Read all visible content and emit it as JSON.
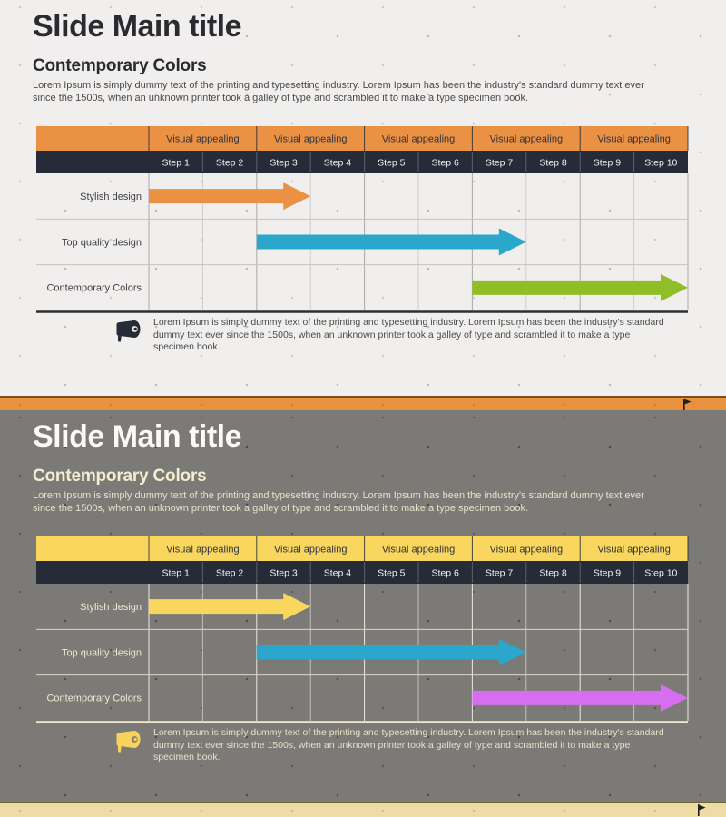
{
  "slides": [
    {
      "name": "light-theme-slide",
      "title": "Slide Main title",
      "subtitle": "Contemporary Colors",
      "intro": "Lorem Ipsum is simply dummy text of the printing and typesetting industry. Lorem Ipsum has been the industry's standard dummy text ever since the 1500s, when an unknown printer took a galley of type and scrambled it to make a type specimen book.",
      "footnote": "Lorem Ipsum is simply dummy text of the printing and typesetting industry. Lorem Ipsum has been the industry's standard dummy text ever since the 1500s, when an unknown printer took a galley of type and scrambled it to make a type specimen book.",
      "theme": {
        "bg": "#F0EFED",
        "title": "#2A2A30",
        "subtitle": "#2A2A30",
        "body": "#4B4B4D",
        "band": "#EA9143",
        "bandText": "#2E3340",
        "stepsBg": "#262B38",
        "stepsText": "#F2F2F2",
        "stepSep": "#5A5F6C",
        "gridStrong": "#ACAAA6",
        "gridLight": "#CFCDC9",
        "rowSep": "#C4C2BE",
        "baseline": "#2E2E2E",
        "label": "#3F3F44",
        "icon": "#262B38"
      },
      "gantt": {
        "group_label": "Visual appealing",
        "group_count": 5,
        "steps": [
          "Step 1",
          "Step 2",
          "Step 3",
          "Step 4",
          "Step 5",
          "Step 6",
          "Step 7",
          "Step 8",
          "Step 9",
          "Step 10"
        ],
        "rows": [
          {
            "label": "Stylish design",
            "start_step": 1,
            "end_step": 3,
            "color": "#EA9143"
          },
          {
            "label": "Top quality design",
            "start_step": 3,
            "end_step": 7,
            "color": "#2BA7CB"
          },
          {
            "label": "Contemporary Colors",
            "start_step": 7,
            "end_step": 10,
            "color": "#8FBE27"
          }
        ]
      }
    },
    {
      "name": "dark-theme-slide",
      "title": "Slide Main title",
      "subtitle": "Contemporary Colors",
      "intro": "Lorem Ipsum is simply dummy text of the printing and typesetting industry. Lorem Ipsum has been the industry's standard dummy text ever since the 1500s, when an unknown printer took a galley of type and scrambled it to make a type specimen book.",
      "footnote": "Lorem Ipsum is simply dummy text of the printing and typesetting industry. Lorem Ipsum has been the industry's standard dummy text ever since the 1500s, when an unknown printer took a galley of type and scrambled it to make a type specimen book.",
      "theme": {
        "bg": "#7B7A77",
        "title": "#FBFAF6",
        "subtitle": "#F4EDD0",
        "body": "#E8E1C9",
        "band": "#F9D75F",
        "bandText": "#2E3340",
        "stepsBg": "#262B38",
        "stepsText": "#F2F2F2",
        "stepSep": "#5A5F6C",
        "gridStrong": "#EDEAE0",
        "gridLight": "rgba(250,248,240,0.55)",
        "rowSep": "#D9D5C6",
        "baseline": "#F2EBD2",
        "label": "#F0E9D1",
        "icon": "#F7D35B"
      },
      "gantt": {
        "group_label": "Visual appealing",
        "group_count": 5,
        "steps": [
          "Step 1",
          "Step 2",
          "Step 3",
          "Step 4",
          "Step 5",
          "Step 6",
          "Step 7",
          "Step 8",
          "Step 9",
          "Step 10"
        ],
        "rows": [
          {
            "label": "Stylish design",
            "start_step": 1,
            "end_step": 3,
            "color": "#F9D75F"
          },
          {
            "label": "Top quality design",
            "start_step": 3,
            "end_step": 7,
            "color": "#2BA7CB"
          },
          {
            "label": "Contemporary Colors",
            "start_step": 7,
            "end_step": 10,
            "color": "#D76EF1"
          }
        ]
      }
    }
  ],
  "dividers": [
    {
      "color": "#E8913F",
      "border": "#7E4E1D"
    },
    {
      "color": "#EFDCA4",
      "border": "#6E6637"
    }
  ]
}
